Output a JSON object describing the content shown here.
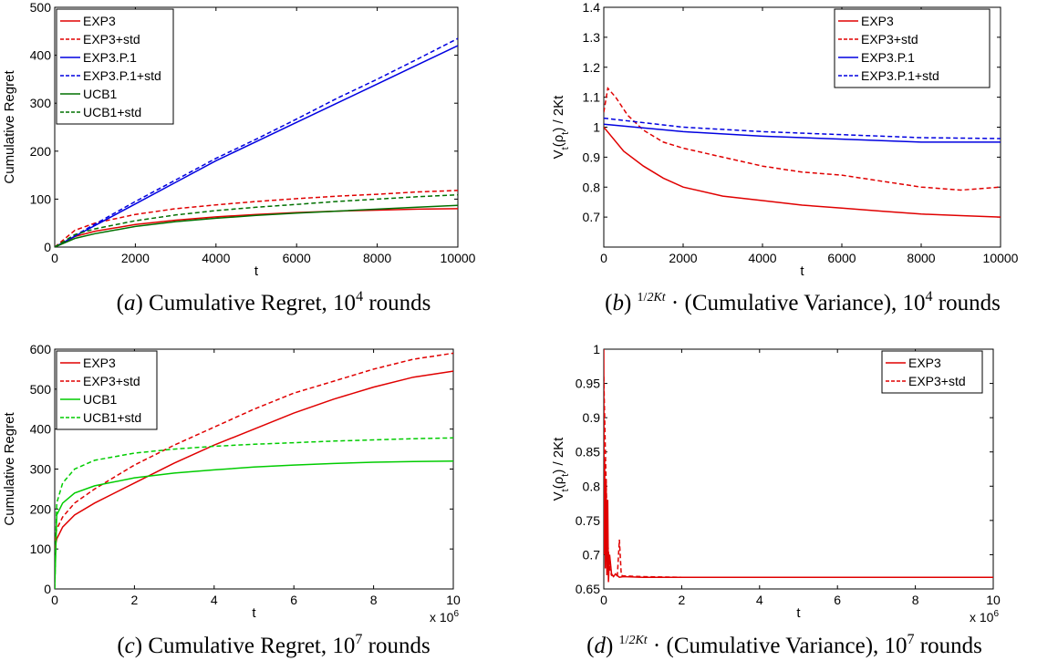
{
  "chart_data": [
    {
      "id": "a",
      "type": "line",
      "caption": {
        "letter": "a",
        "text": "Cumulative Regret, 10",
        "sup": "4",
        "tail": " rounds"
      },
      "xlabel": "t",
      "ylabel": "Cumulative Regret",
      "xlim": [
        0,
        10000
      ],
      "ylim": [
        0,
        500
      ],
      "xticks": [
        0,
        2000,
        4000,
        6000,
        8000,
        10000
      ],
      "yticks": [
        0,
        100,
        200,
        300,
        400,
        500
      ],
      "x_multiplier": "",
      "legend_position": "top-left",
      "series": [
        {
          "name": "EXP3",
          "color": "#e00000",
          "dash": "solid",
          "x": [
            0,
            500,
            1000,
            2000,
            3000,
            4000,
            5000,
            6000,
            7000,
            8000,
            9000,
            10000
          ],
          "y": [
            0,
            22,
            33,
            47,
            56,
            63,
            68,
            72,
            75,
            77,
            79,
            80
          ]
        },
        {
          "name": "EXP3+std",
          "color": "#e00000",
          "dash": "dashed",
          "x": [
            0,
            500,
            1000,
            2000,
            3000,
            4000,
            5000,
            6000,
            7000,
            8000,
            9000,
            10000
          ],
          "y": [
            0,
            35,
            50,
            68,
            80,
            88,
            95,
            101,
            106,
            110,
            115,
            118
          ]
        },
        {
          "name": "EXP3.P.1",
          "color": "#0000e0",
          "dash": "solid",
          "x": [
            0,
            1000,
            2000,
            3000,
            4000,
            5000,
            6000,
            7000,
            8000,
            9000,
            10000
          ],
          "y": [
            0,
            45,
            90,
            135,
            180,
            220,
            260,
            300,
            340,
            380,
            420
          ]
        },
        {
          "name": "EXP3.P.1+std",
          "color": "#0000e0",
          "dash": "dashed",
          "x": [
            0,
            1000,
            2000,
            3000,
            4000,
            5000,
            6000,
            7000,
            8000,
            9000,
            10000
          ],
          "y": [
            0,
            48,
            95,
            140,
            185,
            225,
            267,
            310,
            350,
            392,
            435
          ]
        },
        {
          "name": "UCB1",
          "color": "#007000",
          "dash": "solid",
          "x": [
            0,
            500,
            1000,
            2000,
            3000,
            4000,
            5000,
            6000,
            7000,
            8000,
            9000,
            10000
          ],
          "y": [
            0,
            18,
            28,
            43,
            53,
            60,
            66,
            71,
            75,
            79,
            83,
            87
          ]
        },
        {
          "name": "UCB1+std",
          "color": "#007000",
          "dash": "dashed",
          "x": [
            0,
            500,
            1000,
            2000,
            3000,
            4000,
            5000,
            6000,
            7000,
            8000,
            9000,
            10000
          ],
          "y": [
            0,
            26,
            38,
            55,
            67,
            76,
            83,
            89,
            95,
            100,
            105,
            109
          ]
        }
      ]
    },
    {
      "id": "b",
      "type": "line",
      "caption": {
        "letter": "b",
        "frac_num": "1",
        "frac_den": "2Kt",
        "text": " · (Cumulative Variance), 10",
        "sup": "4",
        "tail": " rounds"
      },
      "xlabel": "t",
      "ylabel": "V_t(ρ_t) / 2Kt",
      "xlim": [
        0,
        10000
      ],
      "ylim": [
        0.6,
        1.4
      ],
      "xticks": [
        0,
        2000,
        4000,
        6000,
        8000,
        10000
      ],
      "yticks": [
        0.7,
        0.8,
        0.9,
        1,
        1.1,
        1.2,
        1.3,
        1.4
      ],
      "x_multiplier": "",
      "legend_position": "top-right",
      "series": [
        {
          "name": "EXP3",
          "color": "#e00000",
          "dash": "solid",
          "x": [
            0,
            500,
            1000,
            1500,
            2000,
            3000,
            4000,
            5000,
            6000,
            7000,
            8000,
            9000,
            10000
          ],
          "y": [
            1.0,
            0.92,
            0.87,
            0.83,
            0.8,
            0.77,
            0.755,
            0.74,
            0.73,
            0.72,
            0.71,
            0.705,
            0.7
          ]
        },
        {
          "name": "EXP3+std",
          "color": "#e00000",
          "dash": "dashed",
          "x": [
            0,
            100,
            300,
            600,
            1000,
            1500,
            2000,
            3000,
            4000,
            5000,
            6000,
            7000,
            8000,
            9000,
            10000
          ],
          "y": [
            1.05,
            1.13,
            1.1,
            1.04,
            0.99,
            0.95,
            0.93,
            0.9,
            0.87,
            0.85,
            0.84,
            0.82,
            0.8,
            0.79,
            0.8
          ]
        },
        {
          "name": "EXP3.P.1",
          "color": "#0000e0",
          "dash": "solid",
          "x": [
            0,
            2000,
            4000,
            6000,
            8000,
            10000
          ],
          "y": [
            1.01,
            0.985,
            0.97,
            0.96,
            0.95,
            0.95
          ]
        },
        {
          "name": "EXP3.P.1+std",
          "color": "#0000e0",
          "dash": "dashed",
          "x": [
            0,
            2000,
            4000,
            6000,
            8000,
            10000
          ],
          "y": [
            1.03,
            1.0,
            0.985,
            0.975,
            0.965,
            0.962
          ]
        }
      ]
    },
    {
      "id": "c",
      "type": "line",
      "caption": {
        "letter": "c",
        "text": "Cumulative Regret, 10",
        "sup": "7",
        "tail": " rounds"
      },
      "xlabel": "t",
      "ylabel": "Cumulative Regret",
      "xlim": [
        0,
        10
      ],
      "ylim": [
        0,
        600
      ],
      "xticks": [
        0,
        2,
        4,
        6,
        8,
        10
      ],
      "yticks": [
        0,
        100,
        200,
        300,
        400,
        500,
        600
      ],
      "x_multiplier": "x 10",
      "x_multiplier_exp": "6",
      "legend_position": "top-left",
      "series": [
        {
          "name": "EXP3",
          "color": "#e00000",
          "dash": "solid",
          "x": [
            0,
            0.05,
            0.2,
            0.5,
            1,
            2,
            3,
            4,
            5,
            6,
            7,
            8,
            9,
            10
          ],
          "y": [
            100,
            125,
            155,
            185,
            215,
            265,
            315,
            360,
            400,
            440,
            475,
            505,
            530,
            545
          ]
        },
        {
          "name": "EXP3+std",
          "color": "#e00000",
          "dash": "dashed",
          "x": [
            0,
            0.05,
            0.2,
            0.5,
            1,
            2,
            3,
            4,
            5,
            6,
            7,
            8,
            9,
            10
          ],
          "y": [
            120,
            150,
            180,
            215,
            250,
            310,
            360,
            405,
            450,
            490,
            520,
            550,
            575,
            590
          ]
        },
        {
          "name": "UCB1",
          "color": "#00cc00",
          "dash": "solid",
          "x": [
            0,
            0.05,
            0.2,
            0.5,
            1,
            2,
            3,
            4,
            5,
            6,
            7,
            8,
            9,
            10
          ],
          "y": [
            0,
            185,
            215,
            240,
            258,
            278,
            290,
            298,
            305,
            310,
            314,
            317,
            319,
            320
          ]
        },
        {
          "name": "UCB1+std",
          "color": "#00cc00",
          "dash": "dashed",
          "x": [
            0,
            0.05,
            0.2,
            0.5,
            1,
            2,
            3,
            4,
            5,
            6,
            7,
            8,
            9,
            10
          ],
          "y": [
            0,
            215,
            265,
            300,
            322,
            340,
            350,
            357,
            362,
            366,
            370,
            373,
            376,
            378
          ]
        }
      ]
    },
    {
      "id": "d",
      "type": "line",
      "caption": {
        "letter": "d",
        "frac_num": "1",
        "frac_den": "2Kt",
        "text": " · (Cumulative Variance), 10",
        "sup": "7",
        "tail": " rounds"
      },
      "xlabel": "t",
      "ylabel": "V_t(ρ_t) / 2Kt",
      "xlim": [
        0,
        10
      ],
      "ylim": [
        0.65,
        1.0
      ],
      "xticks": [
        0,
        2,
        4,
        6,
        8,
        10
      ],
      "yticks": [
        0.65,
        0.7,
        0.75,
        0.8,
        0.85,
        0.9,
        0.95,
        1
      ],
      "x_multiplier": "x 10",
      "x_multiplier_exp": "6",
      "legend_position": "top-right",
      "series": [
        {
          "name": "EXP3",
          "color": "#e00000",
          "dash": "solid",
          "x": [
            0,
            0.01,
            0.02,
            0.04,
            0.06,
            0.08,
            0.1,
            0.12,
            0.15,
            0.2,
            0.25,
            0.3,
            0.4,
            0.5,
            1,
            2,
            4,
            6,
            8,
            10
          ],
          "y": [
            1.0,
            0.7,
            0.84,
            0.68,
            0.81,
            0.67,
            0.78,
            0.66,
            0.7,
            0.672,
            0.668,
            0.672,
            0.667,
            0.668,
            0.667,
            0.667,
            0.667,
            0.667,
            0.667,
            0.667
          ]
        },
        {
          "name": "EXP3+std",
          "color": "#e00000",
          "dash": "dashed",
          "x": [
            0,
            0.05,
            0.1,
            0.15,
            0.2,
            0.3,
            0.35,
            0.4,
            0.45,
            0.5,
            1,
            2,
            4,
            6,
            8,
            10
          ],
          "y": [
            0.96,
            0.83,
            0.72,
            0.68,
            0.67,
            0.668,
            0.67,
            0.722,
            0.67,
            0.669,
            0.668,
            0.667,
            0.667,
            0.667,
            0.667,
            0.667
          ]
        }
      ]
    }
  ]
}
